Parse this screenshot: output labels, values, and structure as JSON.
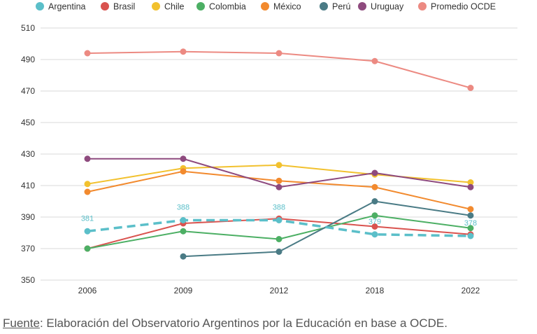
{
  "chart_data": {
    "type": "line",
    "categories": [
      "2006",
      "2009",
      "2012",
      "2018",
      "2022"
    ],
    "ylim": [
      350,
      510
    ],
    "yticks": [
      350,
      370,
      390,
      410,
      430,
      450,
      470,
      490,
      510
    ],
    "grid": true,
    "legend_position": "top",
    "series": [
      {
        "name": "Argentina",
        "color": "#5bbfc9",
        "dashed": true,
        "values": [
          381,
          388,
          388,
          379,
          378
        ],
        "labels": [
          "381",
          "388",
          "388",
          "379",
          "378"
        ]
      },
      {
        "name": "Brasil",
        "color": "#d9534f",
        "values": [
          370,
          386,
          389,
          384,
          379
        ]
      },
      {
        "name": "Chile",
        "color": "#f2c12e",
        "values": [
          411,
          421,
          423,
          417,
          412
        ]
      },
      {
        "name": "Colombia",
        "color": "#4caf64",
        "values": [
          370,
          381,
          376,
          391,
          383
        ]
      },
      {
        "name": "México",
        "color": "#f28a2e",
        "values": [
          406,
          419,
          413,
          409,
          395
        ]
      },
      {
        "name": "Perú",
        "color": "#4a7b85",
        "values": [
          null,
          365,
          368,
          400,
          391
        ]
      },
      {
        "name": "Uruguay",
        "color": "#8e4a7e",
        "values": [
          427,
          427,
          409,
          418,
          409
        ]
      },
      {
        "name": "Promedio OCDE",
        "color": "#ec8a82",
        "values": [
          494,
          495,
          494,
          489,
          472
        ]
      }
    ]
  },
  "source": {
    "prefix": "Fuente",
    "text": ": Elaboración del Observatorio Argentinos por la Educación en base a OCDE."
  }
}
